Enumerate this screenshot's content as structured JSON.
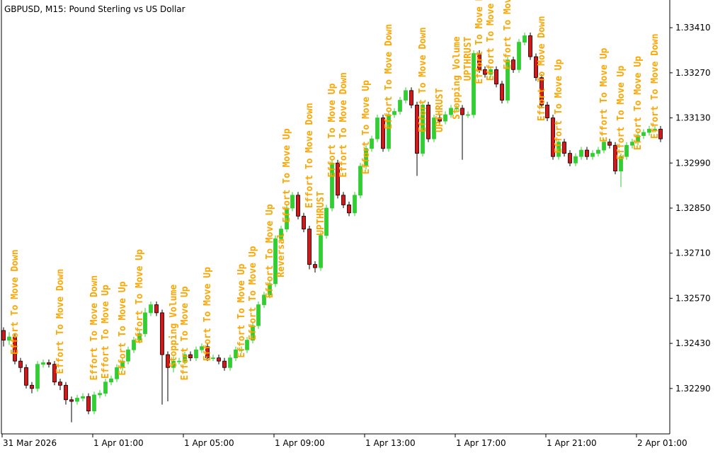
{
  "chart_data": {
    "type": "candlestick",
    "title": "GBPUSD, M15:  Pound Sterling vs US Dollar",
    "categories": [
      "31 Mar 2026",
      null,
      null,
      null,
      null,
      null,
      null,
      null,
      null,
      null,
      null,
      null,
      null,
      null,
      null,
      null,
      "1 Apr 01:00",
      null,
      null,
      null,
      null,
      null,
      null,
      null,
      null,
      null,
      null,
      null,
      null,
      null,
      null,
      null,
      "1 Apr 05:00",
      null,
      null,
      null,
      null,
      null,
      null,
      null,
      null,
      null,
      null,
      null,
      null,
      null,
      null,
      null,
      "1 Apr 09:00",
      null,
      null,
      null,
      null,
      null,
      null,
      null,
      null,
      null,
      null,
      null,
      null,
      null,
      null,
      null,
      "1 Apr 13:00",
      null,
      null,
      null,
      null,
      null,
      null,
      null,
      null,
      null,
      null,
      null,
      null,
      null,
      null,
      null,
      "1 Apr 17:00",
      null,
      null,
      null,
      null,
      null,
      null,
      null,
      null,
      null,
      null,
      null,
      null,
      null,
      null,
      null,
      "1 Apr 21:00",
      null,
      null,
      null,
      null,
      null,
      null,
      null,
      null,
      null,
      null,
      null,
      null,
      null,
      null,
      null,
      "2 Apr 01:00",
      null,
      null,
      null,
      null
    ],
    "open": [
      1.3247,
      1.3244,
      1.3245,
      1.32375,
      1.32355,
      1.323,
      1.3229,
      1.32365,
      1.3237,
      1.32365,
      1.3231,
      1.323,
      1.32255,
      1.3225,
      1.3226,
      1.32265,
      1.3222,
      1.3227,
      1.32275,
      1.3231,
      1.3232,
      1.32355,
      1.32375,
      1.3241,
      1.3244,
      1.3246,
      1.32525,
      1.3255,
      1.32525,
      1.32395,
      1.32355,
      1.32375,
      1.32375,
      1.32395,
      1.32385,
      1.3241,
      1.3242,
      1.32385,
      1.32385,
      1.32375,
      1.32355,
      1.32385,
      1.3241,
      1.3241,
      1.3244,
      1.32485,
      1.3255,
      1.3258,
      1.32615,
      1.32755,
      1.32785,
      1.3285,
      1.3289,
      1.32825,
      1.32785,
      1.32675,
      1.32665,
      1.32765,
      1.3285,
      1.3299,
      1.3289,
      1.3286,
      1.32835,
      1.3289,
      1.3298,
      1.33035,
      1.33065,
      1.3313,
      1.33035,
      1.3314,
      1.3315,
      1.33185,
      1.33215,
      1.3317,
      1.3302,
      1.3317,
      1.33065,
      1.3313,
      1.3312,
      1.3314,
      1.3316,
      1.3316,
      1.3314,
      1.3314,
      1.3333,
      1.3328,
      1.33265,
      1.3328,
      1.33235,
      1.33185,
      1.3331,
      1.3328,
      1.33365,
      1.33385,
      1.3332,
      1.33255,
      1.3317,
      1.3313,
      1.3301,
      1.33055,
      1.3302,
      1.3299,
      1.3301,
      1.3303,
      1.3301,
      1.3302,
      1.3303,
      1.33055,
      1.33045,
      1.32965,
      1.3301,
      1.33045,
      1.33055,
      1.33075,
      1.33085,
      1.33095,
      1.33095
    ],
    "high": [
      1.3248,
      1.32465,
      1.3246,
      1.32385,
      1.32365,
      1.3231,
      1.32375,
      1.3238,
      1.3238,
      1.32375,
      1.3232,
      1.3231,
      1.32265,
      1.3227,
      1.32275,
      1.32275,
      1.3228,
      1.32285,
      1.3232,
      1.3233,
      1.32365,
      1.32385,
      1.3242,
      1.3245,
      1.3247,
      1.3254,
      1.3256,
      1.3256,
      1.32535,
      1.32405,
      1.3239,
      1.32385,
      1.32405,
      1.32405,
      1.3242,
      1.3243,
      1.3243,
      1.32395,
      1.32395,
      1.32385,
      1.32395,
      1.3242,
      1.3242,
      1.3245,
      1.32495,
      1.3256,
      1.3259,
      1.32625,
      1.32765,
      1.32795,
      1.3286,
      1.329,
      1.329,
      1.32835,
      1.32795,
      1.32685,
      1.32775,
      1.3286,
      1.33,
      1.33,
      1.329,
      1.3287,
      1.329,
      1.3299,
      1.33045,
      1.33075,
      1.3314,
      1.3314,
      1.3315,
      1.3316,
      1.33195,
      1.33225,
      1.33225,
      1.3318,
      1.3318,
      1.3318,
      1.3314,
      1.3314,
      1.3315,
      1.3317,
      1.3317,
      1.3317,
      1.3315,
      1.3334,
      1.3334,
      1.3329,
      1.3329,
      1.3329,
      1.33245,
      1.3332,
      1.3332,
      1.33375,
      1.33395,
      1.33395,
      1.3333,
      1.33265,
      1.3318,
      1.3314,
      1.33065,
      1.33065,
      1.3303,
      1.3302,
      1.3304,
      1.3304,
      1.3303,
      1.3304,
      1.33065,
      1.33065,
      1.33055,
      1.3302,
      1.33055,
      1.33065,
      1.33085,
      1.33095,
      1.33105,
      1.33105,
      1.33105
    ],
    "low": [
      1.3242,
      1.32425,
      1.32365,
      1.3234,
      1.3229,
      1.32275,
      1.3228,
      1.32355,
      1.32355,
      1.323,
      1.32285,
      1.3224,
      1.32185,
      1.3224,
      1.3225,
      1.3221,
      1.3221,
      1.3226,
      1.32265,
      1.323,
      1.3231,
      1.32345,
      1.32365,
      1.324,
      1.3243,
      1.3245,
      1.32515,
      1.32515,
      1.3224,
      1.3225,
      1.3234,
      1.32365,
      1.32365,
      1.32375,
      1.32375,
      1.324,
      1.32375,
      1.32375,
      1.32365,
      1.32345,
      1.32345,
      1.32375,
      1.324,
      1.324,
      1.3243,
      1.32475,
      1.3254,
      1.3257,
      1.32605,
      1.32745,
      1.32775,
      1.3284,
      1.32815,
      1.32775,
      1.3266,
      1.3265,
      1.32655,
      1.32755,
      1.3284,
      1.3288,
      1.3285,
      1.32825,
      1.32825,
      1.3288,
      1.3297,
      1.33025,
      1.33055,
      1.33025,
      1.33025,
      1.3313,
      1.3314,
      1.33175,
      1.3316,
      1.3295,
      1.3301,
      1.33055,
      1.33055,
      1.3311,
      1.3311,
      1.3313,
      1.3315,
      1.33,
      1.3313,
      1.3313,
      1.3327,
      1.33255,
      1.33255,
      1.33225,
      1.33175,
      1.33175,
      1.3327,
      1.3327,
      1.33355,
      1.3331,
      1.33245,
      1.3316,
      1.3312,
      1.33,
      1.33,
      1.3301,
      1.3298,
      1.3298,
      1.33,
      1.33,
      1.33,
      1.3301,
      1.3302,
      1.33035,
      1.32955,
      1.32915,
      1.33,
      1.33035,
      1.33045,
      1.33065,
      1.33075,
      1.33085,
      1.33055
    ],
    "close": [
      1.3244,
      1.3245,
      1.32375,
      1.32355,
      1.323,
      1.3229,
      1.32365,
      1.3237,
      1.32365,
      1.3231,
      1.323,
      1.32255,
      1.3225,
      1.3226,
      1.32265,
      1.3222,
      1.3227,
      1.32275,
      1.3231,
      1.3232,
      1.32355,
      1.32375,
      1.3241,
      1.3244,
      1.3246,
      1.32525,
      1.3255,
      1.32525,
      1.32395,
      1.32355,
      1.32375,
      1.32375,
      1.32395,
      1.32385,
      1.3241,
      1.3242,
      1.32385,
      1.32385,
      1.32375,
      1.32355,
      1.32385,
      1.3241,
      1.3241,
      1.3244,
      1.32485,
      1.3255,
      1.3258,
      1.32615,
      1.32755,
      1.32785,
      1.3285,
      1.3289,
      1.32825,
      1.32785,
      1.32675,
      1.32665,
      1.32765,
      1.3285,
      1.3299,
      1.3289,
      1.3286,
      1.32835,
      1.3289,
      1.3298,
      1.33035,
      1.33065,
      1.3313,
      1.33035,
      1.3314,
      1.3315,
      1.33185,
      1.33215,
      1.3317,
      1.3302,
      1.3317,
      1.33065,
      1.3313,
      1.3312,
      1.3314,
      1.3316,
      1.3316,
      1.3314,
      1.3314,
      1.3333,
      1.3328,
      1.33265,
      1.3328,
      1.33235,
      1.33185,
      1.3331,
      1.3328,
      1.33365,
      1.33385,
      1.3332,
      1.33255,
      1.3317,
      1.3313,
      1.3301,
      1.33055,
      1.3302,
      1.3299,
      1.3301,
      1.3303,
      1.3301,
      1.3302,
      1.3303,
      1.33055,
      1.33045,
      1.32965,
      1.3301,
      1.33045,
      1.33055,
      1.33075,
      1.33085,
      1.33095,
      1.33095,
      1.33065
    ],
    "up_color": "#32cd32",
    "down_color": "#dc1414",
    "ylim": [
      1.32149,
      1.33496
    ],
    "yticks": [
      {
        "value": 1.3229,
        "label": "1.32290"
      },
      {
        "value": 1.3243,
        "label": "1.32430"
      },
      {
        "value": 1.3257,
        "label": "1.32570"
      },
      {
        "value": 1.3271,
        "label": "1.32710"
      },
      {
        "value": 1.3285,
        "label": "1.32850"
      },
      {
        "value": 1.3299,
        "label": "1.32990"
      },
      {
        "value": 1.3313,
        "label": "1.33130"
      },
      {
        "value": 1.3327,
        "label": "1.33270"
      },
      {
        "value": 1.3341,
        "label": "1.33410"
      }
    ],
    "annotation_color": "#ffa500",
    "annotations": [
      {
        "text": "Effort To Move Down",
        "index": 2,
        "price": 1.32395
      },
      {
        "text": "Effort To Move Down",
        "index": 10,
        "price": 1.32335
      },
      {
        "text": "Effort To Move Down",
        "index": 16,
        "price": 1.32315
      },
      {
        "text": "Effort To Move Up",
        "index": 18,
        "price": 1.3232
      },
      {
        "text": "Effort To Move Up",
        "index": 21,
        "price": 1.3233
      },
      {
        "text": "Effort To Move Up",
        "index": 24,
        "price": 1.3243
      },
      {
        "text": "Stopping Volume",
        "index": 30,
        "price": 1.32355
      },
      {
        "text": "Effort To Move Up",
        "index": 32,
        "price": 1.32315
      },
      {
        "text": "Effort To Move Up",
        "index": 36,
        "price": 1.32375
      },
      {
        "text": "Effort To Move Up",
        "index": 42,
        "price": 1.32385
      },
      {
        "text": "Effort To Move Up",
        "index": 44,
        "price": 1.3244
      },
      {
        "text": "Effort To Move Up",
        "index": 47,
        "price": 1.3257
      },
      {
        "text": "Reversal",
        "index": 49,
        "price": 1.32635
      },
      {
        "text": "Effort To Move Up",
        "index": 50,
        "price": 1.32805
      },
      {
        "text": "Effort To Move Down",
        "index": 54,
        "price": 1.3285
      },
      {
        "text": "UPTHRUST",
        "index": 56,
        "price": 1.32765
      },
      {
        "text": "Effort To Move Up",
        "index": 58,
        "price": 1.32945
      },
      {
        "text": "Effort To Move Down",
        "index": 60,
        "price": 1.32945
      },
      {
        "text": "Effort To Move Up",
        "index": 64,
        "price": 1.32955
      },
      {
        "text": "Effort To Move Down",
        "index": 68,
        "price": 1.33095
      },
      {
        "text": "Effort To Move Down",
        "index": 74,
        "price": 1.33085
      },
      {
        "text": "UPTHRUST",
        "index": 77,
        "price": 1.33085
      },
      {
        "text": "Stopping Volume",
        "index": 80,
        "price": 1.33125
      },
      {
        "text": "UPTHRUST",
        "index": 82,
        "price": 1.33245
      },
      {
        "text": "Effort To Move Down",
        "index": 84,
        "price": 1.33235
      },
      {
        "text": "Effort To Move Down",
        "index": 86,
        "price": 1.33245
      },
      {
        "text": "Effort To Move Down",
        "index": 89,
        "price": 1.3328
      },
      {
        "text": "Effort To Move Down",
        "index": 95,
        "price": 1.3312
      },
      {
        "text": "Effort To Move Up",
        "index": 98,
        "price": 1.3302
      },
      {
        "text": "Effort To Move Up",
        "index": 106,
        "price": 1.33055
      },
      {
        "text": "Effort To Move Up",
        "index": 109,
        "price": 1.33
      },
      {
        "text": "Effort To Move Up",
        "index": 112,
        "price": 1.3303
      },
      {
        "text": "Effort To Move Down",
        "index": 115,
        "price": 1.33065
      }
    ]
  }
}
